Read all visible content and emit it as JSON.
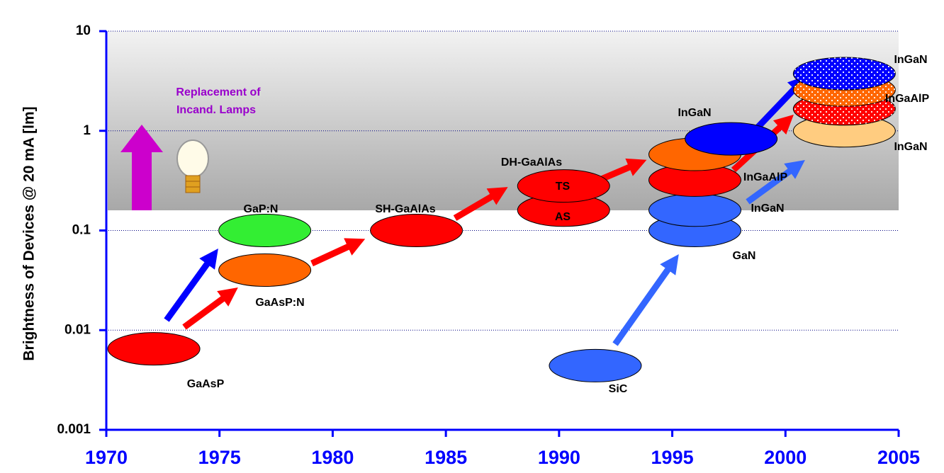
{
  "chart_data": {
    "type": "scatter",
    "ylabel": "Brightness of Devices @ 20 mA [lm]",
    "xlim": [
      1970,
      2005
    ],
    "xticks": [
      1970,
      1975,
      1980,
      1985,
      1990,
      1995,
      2000,
      2005
    ],
    "ylim": [
      0.001,
      10
    ],
    "yticks": [
      0.001,
      0.01,
      0.1,
      1,
      10
    ],
    "log_y": true,
    "grid": true,
    "x": [
      1972.1,
      1977.0,
      1977.0,
      1983.7,
      1990.2,
      1990.2,
      1991.6,
      1996.0,
      1996.0,
      1996.0,
      1996.0,
      1997.6,
      2002.6,
      2002.6,
      2002.6,
      2002.6
    ],
    "values": [
      0.0065,
      0.1,
      0.04,
      0.1,
      0.16,
      0.28,
      0.0044,
      0.1,
      0.16,
      0.32,
      0.58,
      0.83,
      1.0,
      1.66,
      2.57,
      3.75
    ],
    "colors": [
      "#ff0000",
      "#33ee33",
      "#ff6600",
      "#ff0000",
      "#ff0000",
      "#ff0000",
      "#3366ff",
      "#3366ff",
      "#3366ff",
      "#ff0000",
      "#ff6600",
      "#0000ff",
      "#ffcc80",
      "#ff0000",
      "#ff6600",
      "#0000ff"
    ],
    "annotations": [
      "GaAsP",
      "GaP:N",
      "GaAsP:N",
      "SH-GaAlAs",
      "DH-GaAlAs",
      "TS",
      "AS",
      "InGaN",
      "InGaAlP",
      "InGaN",
      "GaN",
      "SiC",
      "InGaN",
      "InGaAlP",
      "InGaN",
      "Replacement of",
      "Incand. Lamps"
    ]
  }
}
